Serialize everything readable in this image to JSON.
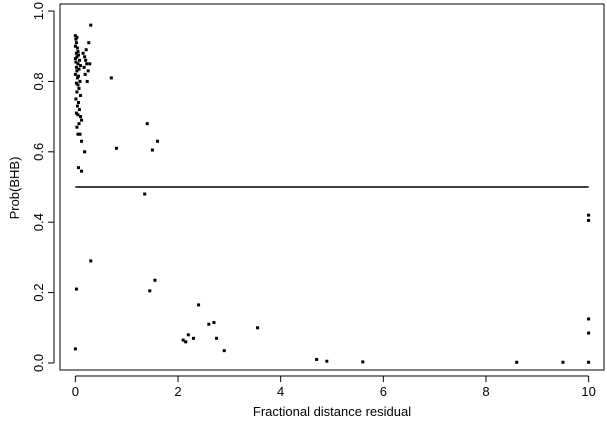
{
  "chart_data": {
    "type": "scatter",
    "title": "",
    "xlabel": "Fractional distance residual",
    "ylabel": "Prob(BHB)",
    "xlim": [
      -0.3,
      10.3
    ],
    "ylim": [
      -0.02,
      1.02
    ],
    "x_ticks": [
      0,
      2,
      4,
      6,
      8,
      10
    ],
    "x_tick_labels": [
      "0",
      "2",
      "4",
      "6",
      "8",
      "10"
    ],
    "y_ticks": [
      0.0,
      0.2,
      0.4,
      0.6,
      0.8,
      1.0
    ],
    "y_tick_labels": [
      "0.0",
      "0.2",
      "0.4",
      "0.6",
      "0.8",
      "1.0"
    ],
    "grid": false,
    "reference_line": {
      "y": 0.5,
      "x_from": 0,
      "x_to": 10
    },
    "points": [
      [
        0.0,
        0.93
      ],
      [
        0.01,
        0.92
      ],
      [
        0.03,
        0.925
      ],
      [
        0.02,
        0.91
      ],
      [
        0.0,
        0.9
      ],
      [
        0.04,
        0.895
      ],
      [
        0.05,
        0.885
      ],
      [
        0.02,
        0.88
      ],
      [
        0.06,
        0.875
      ],
      [
        0.03,
        0.87
      ],
      [
        0.0,
        0.865
      ],
      [
        0.08,
        0.86
      ],
      [
        0.01,
        0.855
      ],
      [
        0.05,
        0.85
      ],
      [
        0.1,
        0.845
      ],
      [
        0.02,
        0.84
      ],
      [
        0.07,
        0.835
      ],
      [
        0.03,
        0.83
      ],
      [
        0.0,
        0.82
      ],
      [
        0.06,
        0.815
      ],
      [
        0.04,
        0.81
      ],
      [
        0.09,
        0.8
      ],
      [
        0.02,
        0.795
      ],
      [
        0.05,
        0.79
      ],
      [
        0.07,
        0.78
      ],
      [
        0.03,
        0.77
      ],
      [
        0.1,
        0.76
      ],
      [
        0.01,
        0.75
      ],
      [
        0.06,
        0.74
      ],
      [
        0.04,
        0.73
      ],
      [
        0.08,
        0.72
      ],
      [
        0.02,
        0.71
      ],
      [
        0.05,
        0.705
      ],
      [
        0.1,
        0.7
      ],
      [
        0.12,
        0.69
      ],
      [
        0.07,
        0.68
      ],
      [
        0.03,
        0.67
      ],
      [
        0.09,
        0.65
      ],
      [
        0.05,
        0.65
      ],
      [
        0.12,
        0.63
      ],
      [
        0.18,
        0.6
      ],
      [
        0.06,
        0.555
      ],
      [
        0.12,
        0.545
      ],
      [
        0.15,
        0.88
      ],
      [
        0.18,
        0.87
      ],
      [
        0.2,
        0.86
      ],
      [
        0.22,
        0.85
      ],
      [
        0.17,
        0.84
      ],
      [
        0.25,
        0.83
      ],
      [
        0.19,
        0.82
      ],
      [
        0.28,
        0.85
      ],
      [
        0.23,
        0.8
      ],
      [
        0.21,
        0.89
      ],
      [
        0.26,
        0.91
      ],
      [
        0.3,
        0.96
      ],
      [
        0.7,
        0.81
      ],
      [
        0.8,
        0.61
      ],
      [
        1.4,
        0.68
      ],
      [
        1.5,
        0.605
      ],
      [
        1.6,
        0.63
      ],
      [
        1.35,
        0.48
      ],
      [
        0.3,
        0.29
      ],
      [
        0.02,
        0.21
      ],
      [
        1.55,
        0.235
      ],
      [
        1.45,
        0.205
      ],
      [
        0.0,
        0.04
      ],
      [
        2.1,
        0.065
      ],
      [
        2.15,
        0.06
      ],
      [
        2.2,
        0.08
      ],
      [
        2.3,
        0.07
      ],
      [
        2.4,
        0.165
      ],
      [
        2.6,
        0.11
      ],
      [
        2.7,
        0.115
      ],
      [
        2.75,
        0.07
      ],
      [
        2.9,
        0.035
      ],
      [
        3.55,
        0.1
      ],
      [
        4.7,
        0.01
      ],
      [
        4.9,
        0.005
      ],
      [
        5.6,
        0.003
      ],
      [
        8.6,
        0.002
      ],
      [
        9.5,
        0.002
      ],
      [
        10.0,
        0.42
      ],
      [
        10.0,
        0.405
      ],
      [
        10.0,
        0.125
      ],
      [
        10.0,
        0.085
      ],
      [
        10.0,
        0.002
      ]
    ]
  }
}
